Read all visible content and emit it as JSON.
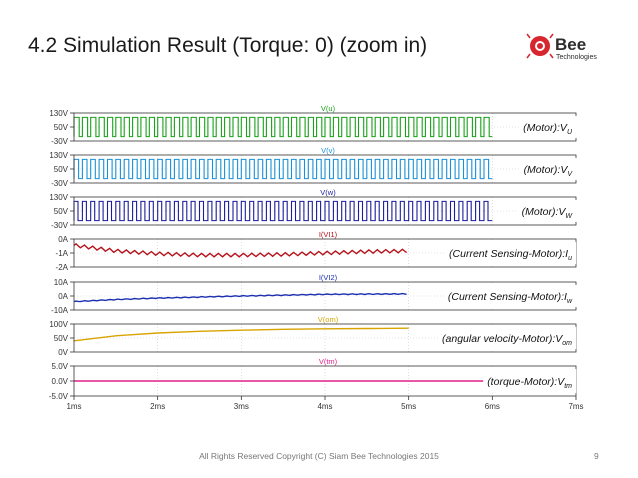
{
  "slide": {
    "title": "4.2 Simulation Result (Torque: 0) (zoom in)",
    "footer": "All Rights Reserved Copyright (C) Siam Bee Technologies 2015",
    "page_number": "9"
  },
  "logo": {
    "name": "Bee",
    "sub": "Technologies",
    "accent": "#d7262e"
  },
  "chart_data": {
    "type": "line",
    "x_ticks": [
      "1ms",
      "2ms",
      "3ms",
      "4ms",
      "5ms",
      "6ms",
      "7ms"
    ],
    "xlim": [
      1,
      7
    ],
    "x_unit": "ms",
    "grid": true,
    "panels": [
      {
        "trace": "V(u)",
        "label": "(Motor):V",
        "label_sub": "U",
        "color": "#1aa01a",
        "ticks": [
          "130V",
          "50V",
          "-30V"
        ],
        "ylim": [
          -30,
          130
        ],
        "shape": "pwm",
        "low": -5,
        "high": 105,
        "period": 0.1,
        "duty": 0.62
      },
      {
        "trace": "V(v)",
        "label": "(Motor):V",
        "label_sub": "V",
        "color": "#1a90d6",
        "ticks": [
          "130V",
          "50V",
          "-30V"
        ],
        "ylim": [
          -30,
          130
        ],
        "shape": "pwm",
        "low": -5,
        "high": 105,
        "period": 0.1,
        "duty": 0.55
      },
      {
        "trace": "V(w)",
        "label": "(Motor):V",
        "label_sub": "W",
        "color": "#1c1c9c",
        "ticks": [
          "130V",
          "50V",
          "-30V"
        ],
        "ylim": [
          -30,
          130
        ],
        "shape": "pwm",
        "low": -5,
        "high": 105,
        "period": 0.1,
        "duty": 0.48
      },
      {
        "trace": "I(VI1)",
        "label": "(Current Sensing-Motor):I",
        "label_sub": "u",
        "color": "#b5121b",
        "ticks": [
          "0A",
          "-1A",
          "-2A"
        ],
        "ylim": [
          -2,
          0
        ],
        "shape": "ripple",
        "points": [
          [
            1,
            -0.45
          ],
          [
            1.5,
            -0.85
          ],
          [
            2,
            -1.05
          ],
          [
            2.5,
            -1.15
          ],
          [
            3,
            -1.15
          ],
          [
            3.5,
            -1.1
          ],
          [
            4,
            -1.0
          ],
          [
            4.5,
            -0.9
          ],
          [
            5,
            -0.85
          ]
        ],
        "ripple_amp": 0.12
      },
      {
        "trace": "I(VI2)",
        "label": "(Current Sensing-Motor):I",
        "label_sub": "w",
        "color": "#1c2fb0",
        "ticks": [
          "10A",
          "0A",
          "-10A"
        ],
        "ylim": [
          -10,
          10
        ],
        "shape": "ripple",
        "points": [
          [
            1,
            -4
          ],
          [
            1.5,
            -2.5
          ],
          [
            2,
            -1.5
          ],
          [
            3,
            0
          ],
          [
            4,
            1.2
          ],
          [
            5,
            1.5
          ]
        ],
        "ripple_amp": 0.25
      },
      {
        "trace": "V(om)",
        "label": "(angular velocity-Motor):V",
        "label_sub": "om",
        "color": "#d9a400",
        "ticks": [
          "100V",
          "50V",
          "0V"
        ],
        "ylim": [
          0,
          100
        ],
        "shape": "line",
        "points": [
          [
            1,
            40
          ],
          [
            1.5,
            58
          ],
          [
            2,
            68
          ],
          [
            2.5,
            74
          ],
          [
            3,
            78
          ],
          [
            3.5,
            81
          ],
          [
            4,
            83
          ],
          [
            4.5,
            84
          ],
          [
            5,
            85
          ]
        ]
      },
      {
        "trace": "V(tm)",
        "label": "(torque-Motor):V",
        "label_sub": "tm",
        "color": "#e0218a",
        "ticks": [
          "5.0V",
          "0.0V",
          "-5.0V"
        ],
        "ylim": [
          -5,
          5
        ],
        "shape": "line",
        "points": [
          [
            1,
            0
          ],
          [
            7,
            0
          ]
        ]
      }
    ]
  }
}
